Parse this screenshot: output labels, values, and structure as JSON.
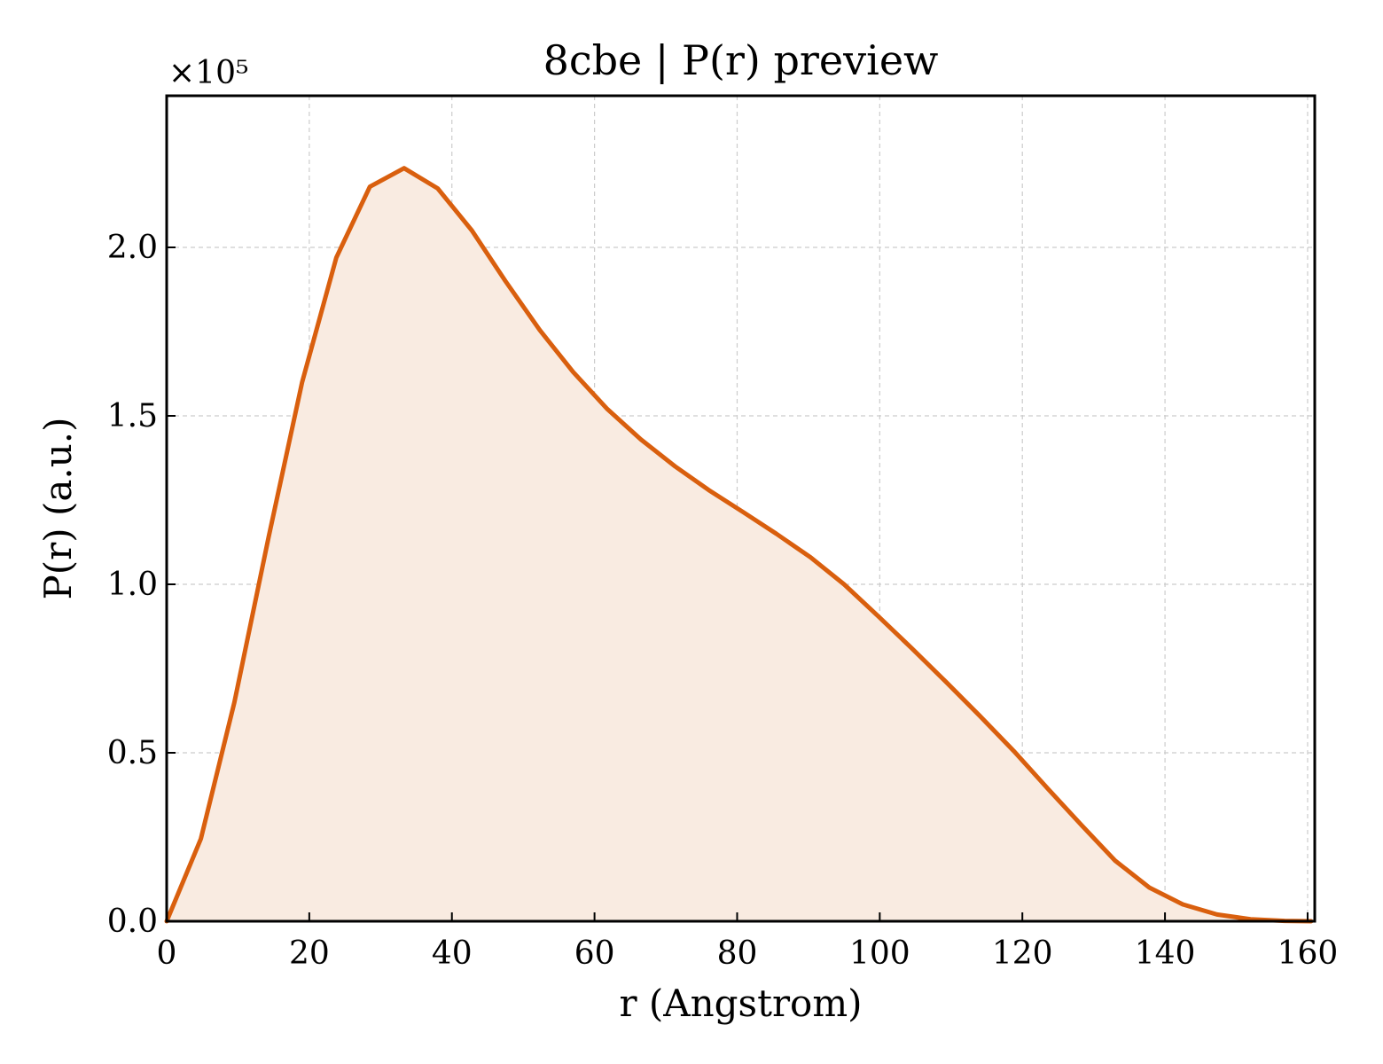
{
  "chart_data": {
    "type": "area",
    "title": "8cbe | P(r) preview",
    "xlabel": "r (Angstrom)",
    "ylabel": "P(r) (a.u.)",
    "y_offset_label": "×10⁵",
    "y_scale_factor": 100000,
    "xlim": [
      0,
      161
    ],
    "ylim": [
      0,
      245000
    ],
    "xticks": [
      0,
      20,
      40,
      60,
      80,
      100,
      120,
      140,
      160
    ],
    "yticks": [
      0,
      50000,
      100000,
      150000,
      200000
    ],
    "ytick_labels": [
      "0.0",
      "0.5",
      "1.0",
      "1.5",
      "2.0"
    ],
    "grid": true,
    "line_color": "#d95f0e",
    "fill_color": "#f9ebe1",
    "series": [
      {
        "x": [
          0,
          4.8,
          9.5,
          14.3,
          19.0,
          23.8,
          28.5,
          33.3,
          38.0,
          42.8,
          47.5,
          52.3,
          57.0,
          61.8,
          66.5,
          71.3,
          76.0,
          80.8,
          85.5,
          90.3,
          95.0,
          99.8,
          104.5,
          109.3,
          114.0,
          118.8,
          123.5,
          128.3,
          133.0,
          137.8,
          142.5,
          147.3,
          152.0,
          156.8,
          160.5
        ],
        "values": [
          0,
          24500,
          65000,
          114000,
          160000,
          197000,
          218000,
          223500,
          217500,
          205000,
          190000,
          175500,
          163000,
          152000,
          143000,
          135000,
          128000,
          121500,
          115000,
          108000,
          100000,
          90500,
          81000,
          71000,
          61000,
          50500,
          39500,
          28500,
          18000,
          10000,
          5000,
          2000,
          600,
          100,
          0
        ]
      }
    ]
  }
}
